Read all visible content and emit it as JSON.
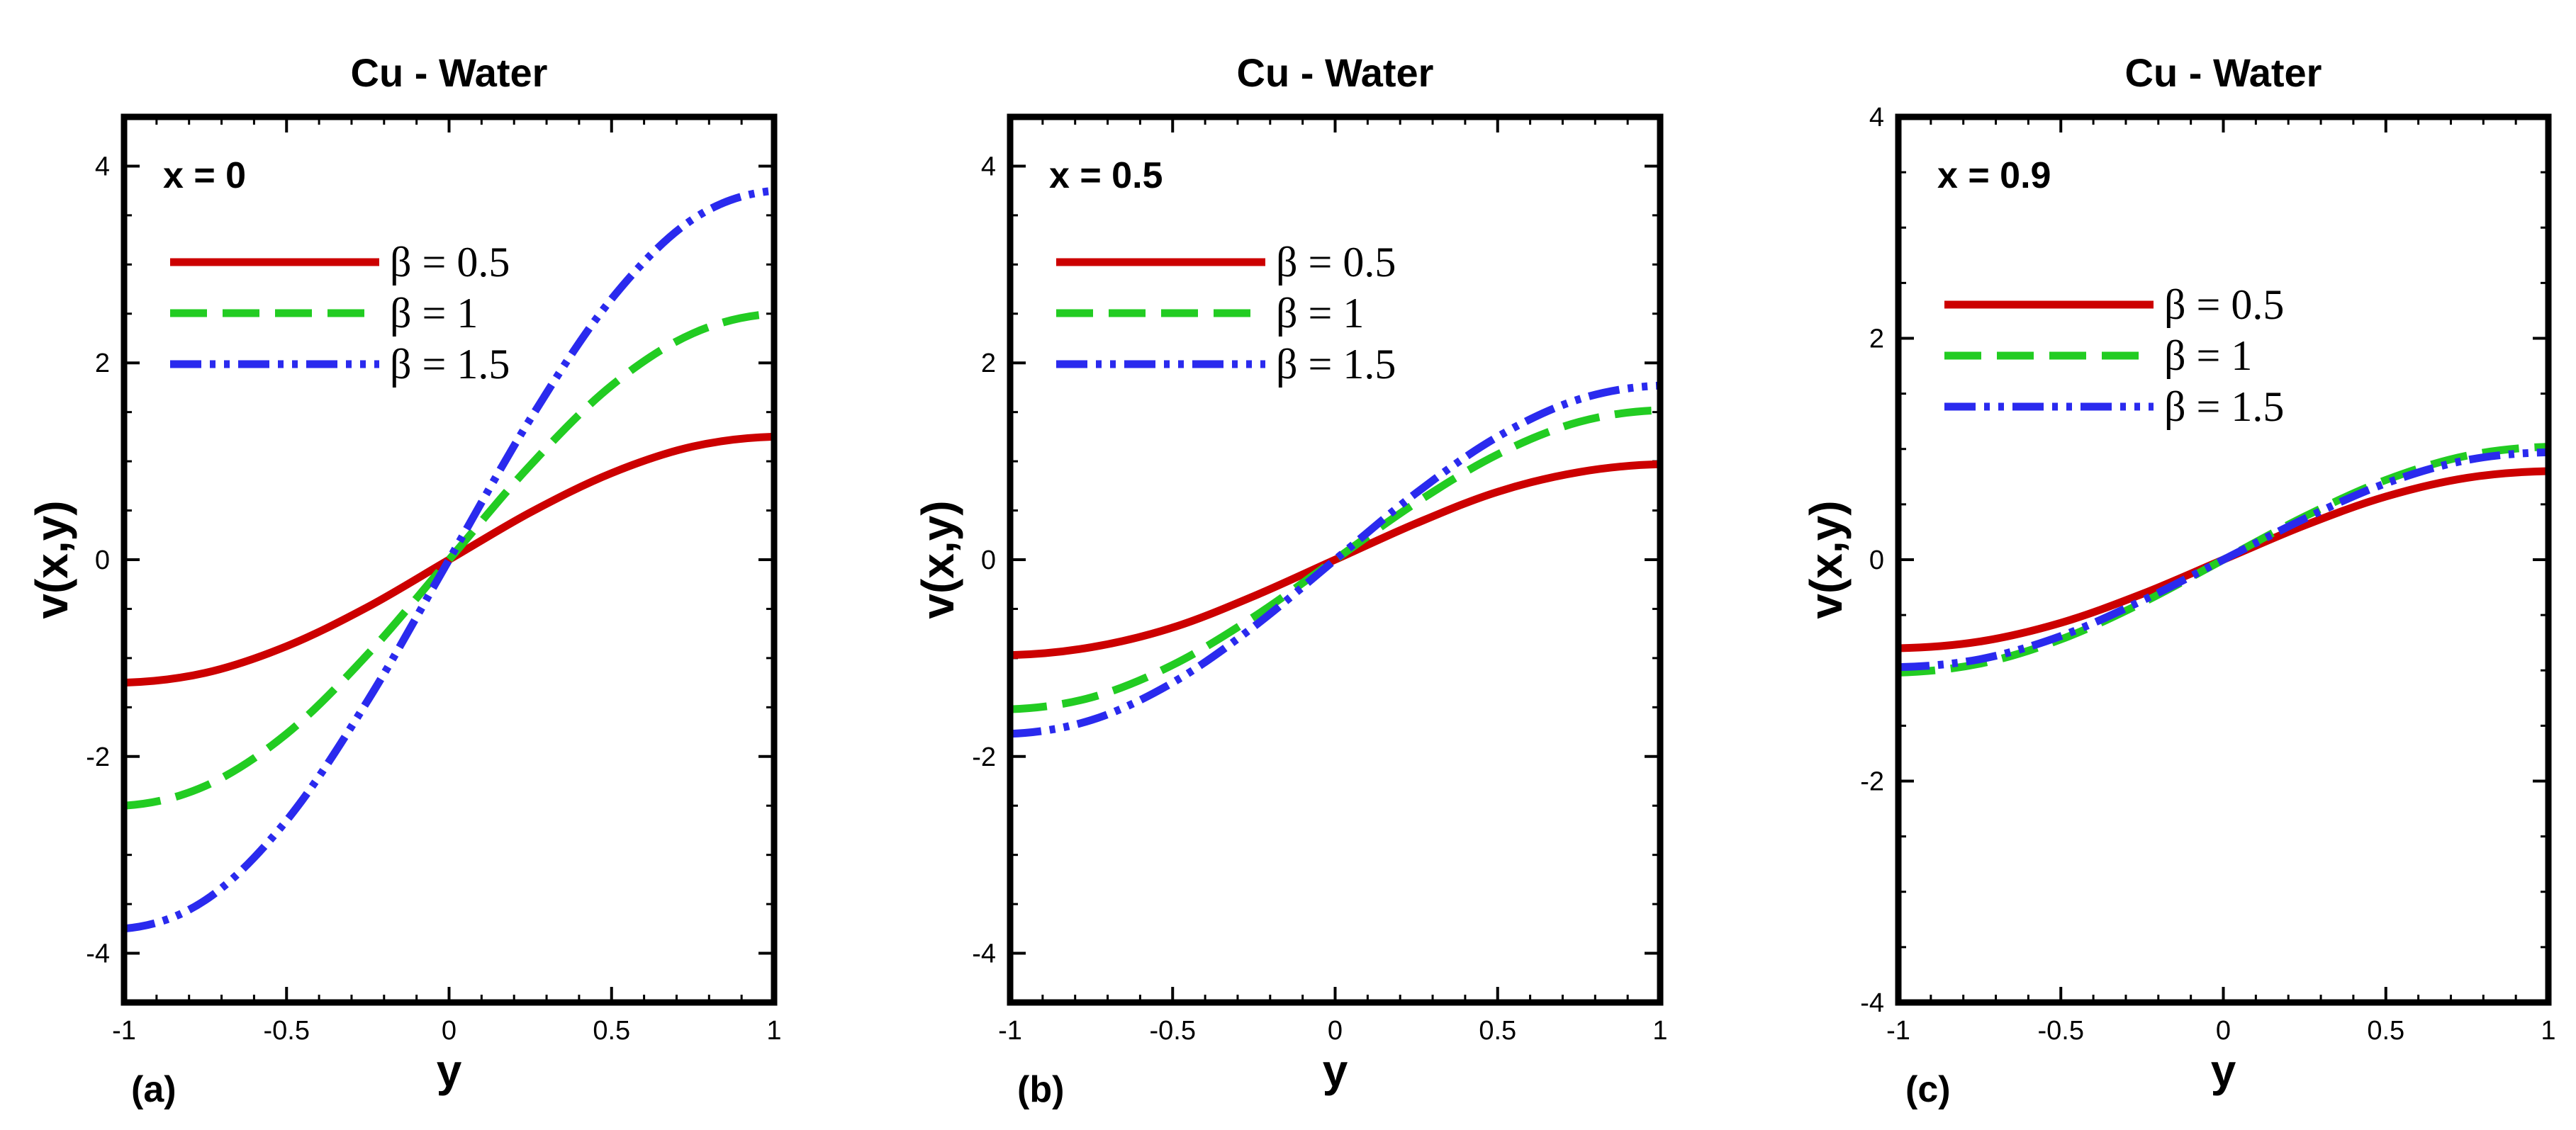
{
  "chart_data": [
    {
      "type": "line",
      "title": "Cu - Water",
      "annotation": "x = 0",
      "panel_label": "(a)",
      "xlabel": "y",
      "ylabel": "v(x,y)",
      "xlim": [
        -1,
        1
      ],
      "ylim": [
        -4.5,
        4.5
      ],
      "xticks": [
        -1,
        -0.5,
        0,
        0.5,
        1
      ],
      "xtick_labels": [
        "-1",
        "-0.5",
        "0",
        "0.5",
        "1"
      ],
      "yticks": [
        -4,
        -2,
        0,
        2,
        4
      ],
      "ytick_labels": [
        "-4",
        "-2",
        "0",
        "2",
        "4"
      ],
      "grid": false,
      "legend_position": "top-left",
      "x": [
        -1,
        -0.75,
        -0.5,
        -0.25,
        0,
        0.25,
        0.5,
        0.75,
        1
      ],
      "series": [
        {
          "name": "β = 0.5",
          "color": "#cc0000",
          "style": "solid",
          "values": [
            -1.25,
            -1.15,
            -0.88,
            -0.48,
            0,
            0.48,
            0.88,
            1.15,
            1.25
          ]
        },
        {
          "name": "β = 1",
          "color": "#22cc22",
          "style": "dashed",
          "values": [
            -2.5,
            -2.3,
            -1.77,
            -0.96,
            0,
            0.96,
            1.77,
            2.3,
            2.5
          ]
        },
        {
          "name": "β = 1.5",
          "color": "#2a2aee",
          "style": "dash-dot-dot",
          "values": [
            -3.75,
            -3.46,
            -2.65,
            -1.43,
            0,
            1.43,
            2.65,
            3.46,
            3.75
          ]
        }
      ]
    },
    {
      "type": "line",
      "title": "Cu - Water",
      "annotation": "x = 0.5",
      "panel_label": "(b)",
      "xlabel": "y",
      "ylabel": "v(x,y)",
      "xlim": [
        -1,
        1
      ],
      "ylim": [
        -4.5,
        4.5
      ],
      "xticks": [
        -1,
        -0.5,
        0,
        0.5,
        1
      ],
      "xtick_labels": [
        "-1",
        "-0.5",
        "0",
        "0.5",
        "1"
      ],
      "yticks": [
        -4,
        -2,
        0,
        2,
        4
      ],
      "ytick_labels": [
        "-4",
        "-2",
        "0",
        "2",
        "4"
      ],
      "grid": false,
      "legend_position": "top-left",
      "x": [
        -1,
        -0.75,
        -0.5,
        -0.25,
        0,
        0.25,
        0.5,
        0.75,
        1
      ],
      "series": [
        {
          "name": "β = 0.5",
          "color": "#cc0000",
          "style": "solid",
          "values": [
            -0.97,
            -0.89,
            -0.69,
            -0.37,
            0,
            0.37,
            0.69,
            0.89,
            0.97
          ]
        },
        {
          "name": "β = 1",
          "color": "#22cc22",
          "style": "dashed",
          "values": [
            -1.52,
            -1.4,
            -1.07,
            -0.58,
            0,
            0.58,
            1.07,
            1.4,
            1.52
          ]
        },
        {
          "name": "β = 1.5",
          "color": "#2a2aee",
          "style": "dash-dot-dot",
          "values": [
            -1.77,
            -1.63,
            -1.25,
            -0.68,
            0,
            0.68,
            1.25,
            1.63,
            1.77
          ]
        }
      ]
    },
    {
      "type": "line",
      "title": "Cu - Water",
      "annotation": "x = 0.9",
      "panel_label": "(c)",
      "xlabel": "y",
      "ylabel": "v(x,y)",
      "xlim": [
        -1,
        1
      ],
      "ylim": [
        -4,
        4
      ],
      "xticks": [
        -1,
        -0.5,
        0,
        0.5,
        1
      ],
      "xtick_labels": [
        "-1",
        "-0.5",
        "0",
        "0.5",
        "1"
      ],
      "yticks": [
        -4,
        -2,
        0,
        2,
        4
      ],
      "ytick_labels": [
        "-4",
        "-2",
        "0",
        "2",
        "4"
      ],
      "grid": false,
      "legend_position": "top-left",
      "x": [
        -1,
        -0.75,
        -0.5,
        -0.25,
        0,
        0.25,
        0.5,
        0.75,
        1
      ],
      "series": [
        {
          "name": "β = 0.5",
          "color": "#cc0000",
          "style": "solid",
          "values": [
            -0.8,
            -0.74,
            -0.57,
            -0.31,
            0,
            0.31,
            0.57,
            0.74,
            0.8
          ]
        },
        {
          "name": "β = 1",
          "color": "#22cc22",
          "style": "dashed",
          "values": [
            -1.02,
            -0.94,
            -0.72,
            -0.39,
            0,
            0.39,
            0.72,
            0.94,
            1.02
          ]
        },
        {
          "name": "β = 1.5",
          "color": "#2a2aee",
          "style": "dash-dot-dot",
          "values": [
            -0.97,
            -0.9,
            -0.69,
            -0.37,
            0,
            0.37,
            0.69,
            0.9,
            0.97
          ]
        }
      ]
    }
  ]
}
